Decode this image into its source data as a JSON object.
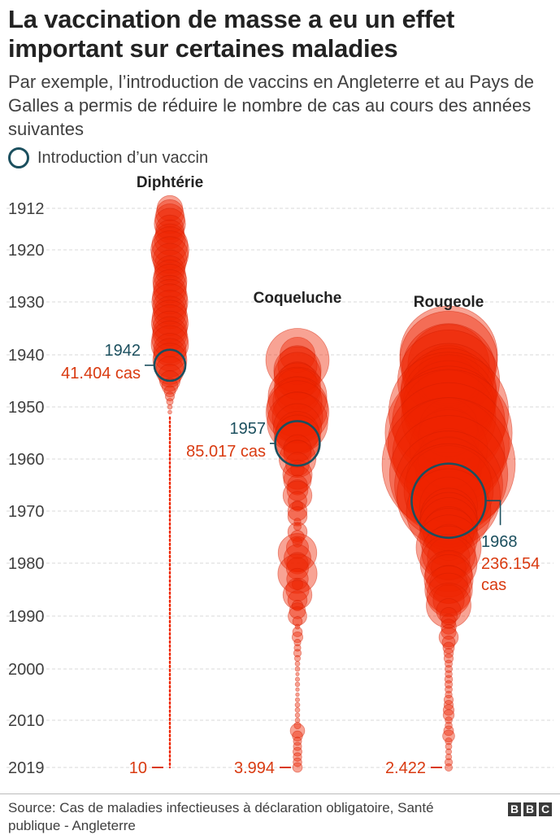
{
  "header": {
    "title": "La vaccination de masse a eu un effet important sur certaines maladies",
    "subtitle": "Par exemple, l’introduction de vaccins en Angleterre et au Pays de Galles a permis de réduire le nombre de cas au cours des années suivantes"
  },
  "legend": {
    "label": "Introduction d’un vaccin"
  },
  "footer": {
    "source": "Source: Cas de maladies infectieuses à déclaration obligatoire, Santé publique - Angleterre",
    "logo_letters": [
      "B",
      "B",
      "C"
    ]
  },
  "colors": {
    "bubble_fill": "#ee2400",
    "bubble_stroke": "#d01c00",
    "vaccine_circle": "#1b4f5e",
    "year_label": "#1b4f5e",
    "cases_label": "#d93a10",
    "grid": "#d9d9d9",
    "axis_text": "#404040"
  },
  "chart_data": {
    "type": "bubble-timeline",
    "y_axis": {
      "ticks": [
        1912,
        1920,
        1930,
        1940,
        1950,
        1960,
        1970,
        1980,
        1990,
        2000,
        2010,
        2019
      ],
      "range": [
        1912,
        2019
      ],
      "grid": true
    },
    "series": [
      {
        "name": "Diphtérie",
        "vaccine_year": 1942,
        "vaccine_year_label": "1942",
        "vaccine_cases_label": "41.404 cas",
        "final_label": "10",
        "dotted_from": 1952,
        "data": [
          [
            1912,
            28000
          ],
          [
            1913,
            33000
          ],
          [
            1914,
            38000
          ],
          [
            1915,
            42000
          ],
          [
            1916,
            34000
          ],
          [
            1917,
            36000
          ],
          [
            1918,
            42000
          ],
          [
            1919,
            55000
          ],
          [
            1920,
            62000
          ],
          [
            1921,
            58000
          ],
          [
            1922,
            49000
          ],
          [
            1923,
            42000
          ],
          [
            1924,
            38000
          ],
          [
            1925,
            44000
          ],
          [
            1926,
            50000
          ],
          [
            1927,
            48000
          ],
          [
            1928,
            45000
          ],
          [
            1929,
            52000
          ],
          [
            1930,
            56000
          ],
          [
            1931,
            50000
          ],
          [
            1932,
            46000
          ],
          [
            1933,
            54000
          ],
          [
            1934,
            58000
          ],
          [
            1935,
            52000
          ],
          [
            1936,
            50000
          ],
          [
            1937,
            56000
          ],
          [
            1938,
            60000
          ],
          [
            1939,
            46000
          ],
          [
            1940,
            46000
          ],
          [
            1941,
            50000
          ],
          [
            1942,
            41404
          ],
          [
            1943,
            34000
          ],
          [
            1944,
            23000
          ],
          [
            1945,
            18000
          ],
          [
            1946,
            11000
          ],
          [
            1947,
            5600
          ],
          [
            1948,
            3500
          ],
          [
            1949,
            1900
          ],
          [
            1950,
            960
          ],
          [
            1951,
            660
          ]
        ]
      },
      {
        "name": "Coqueluche",
        "vaccine_year": 1957,
        "vaccine_year_label": "1957",
        "vaccine_cases_label": "85.017 cas",
        "final_label": "3.994",
        "data": [
          [
            1940,
            53000
          ],
          [
            1941,
            172000
          ],
          [
            1942,
            66000
          ],
          [
            1943,
            96000
          ],
          [
            1944,
            94000
          ],
          [
            1945,
            62000
          ],
          [
            1946,
            92000
          ],
          [
            1947,
            92000
          ],
          [
            1948,
            148000
          ],
          [
            1949,
            104000
          ],
          [
            1950,
            158000
          ],
          [
            1951,
            170000
          ],
          [
            1952,
            110000
          ],
          [
            1953,
            158000
          ],
          [
            1954,
            100000
          ],
          [
            1955,
            80000
          ],
          [
            1956,
            92000
          ],
          [
            1957,
            85017
          ],
          [
            1958,
            33000
          ],
          [
            1959,
            33000
          ],
          [
            1960,
            58000
          ],
          [
            1961,
            24000
          ],
          [
            1962,
            8000
          ],
          [
            1963,
            37000
          ],
          [
            1964,
            33000
          ],
          [
            1965,
            17000
          ],
          [
            1966,
            19000
          ],
          [
            1967,
            36000
          ],
          [
            1968,
            15000
          ],
          [
            1969,
            5000
          ],
          [
            1970,
            16000
          ],
          [
            1971,
            16000
          ],
          [
            1972,
            2000
          ],
          [
            1973,
            2400
          ],
          [
            1974,
            16000
          ],
          [
            1975,
            8000
          ],
          [
            1976,
            4000
          ],
          [
            1977,
            21000
          ],
          [
            1978,
            64000
          ],
          [
            1979,
            31000
          ],
          [
            1980,
            20000
          ],
          [
            1981,
            21000
          ],
          [
            1982,
            66000
          ],
          [
            1983,
            20000
          ],
          [
            1984,
            5000
          ],
          [
            1985,
            23000
          ],
          [
            1986,
            36000
          ],
          [
            1987,
            16000
          ],
          [
            1988,
            5000
          ],
          [
            1989,
            11000
          ],
          [
            1990,
            15000
          ],
          [
            1991,
            4000
          ],
          [
            1992,
            1000
          ],
          [
            1993,
            4000
          ],
          [
            1994,
            5000
          ],
          [
            1995,
            2000
          ],
          [
            1996,
            2000
          ],
          [
            1997,
            2500
          ],
          [
            1998,
            1500
          ],
          [
            1999,
            1000
          ],
          [
            2000,
            1000
          ],
          [
            2001,
            500
          ],
          [
            2002,
            800
          ],
          [
            2003,
            900
          ],
          [
            2004,
            600
          ],
          [
            2005,
            600
          ],
          [
            2006,
            800
          ],
          [
            2007,
            1000
          ],
          [
            2008,
            1000
          ],
          [
            2009,
            900
          ],
          [
            2010,
            1000
          ],
          [
            2011,
            2000
          ],
          [
            2012,
            9000
          ],
          [
            2013,
            4500
          ],
          [
            2014,
            3000
          ],
          [
            2015,
            3000
          ],
          [
            2016,
            3500
          ],
          [
            2017,
            3200
          ],
          [
            2018,
            3300
          ],
          [
            2019,
            3994
          ]
        ]
      },
      {
        "name": "Rougeole",
        "vaccine_year": 1968,
        "vaccine_year_label": "1968",
        "vaccine_cases_label": "236.154 cas",
        "final_label": "2.422",
        "data": [
          [
            1940,
            409000
          ],
          [
            1941,
            410000
          ],
          [
            1942,
            286000
          ],
          [
            1943,
            376000
          ],
          [
            1944,
            159000
          ],
          [
            1945,
            446000
          ],
          [
            1946,
            160000
          ],
          [
            1947,
            394000
          ],
          [
            1948,
            400000
          ],
          [
            1949,
            380000
          ],
          [
            1950,
            367000
          ],
          [
            1951,
            617000
          ],
          [
            1952,
            383000
          ],
          [
            1953,
            546000
          ],
          [
            1954,
            146000
          ],
          [
            1955,
            694000
          ],
          [
            1956,
            160000
          ],
          [
            1957,
            633000
          ],
          [
            1958,
            260000
          ],
          [
            1959,
            540000
          ],
          [
            1960,
            160000
          ],
          [
            1961,
            763000
          ],
          [
            1962,
            184000
          ],
          [
            1963,
            601000
          ],
          [
            1964,
            307000
          ],
          [
            1965,
            502000
          ],
          [
            1966,
            343000
          ],
          [
            1967,
            460000
          ],
          [
            1968,
            236154
          ],
          [
            1969,
            143000
          ],
          [
            1970,
            307000
          ],
          [
            1971,
            135000
          ],
          [
            1972,
            145000
          ],
          [
            1973,
            145000
          ],
          [
            1974,
            110000
          ],
          [
            1975,
            143000
          ],
          [
            1976,
            56000
          ],
          [
            1977,
            182000
          ],
          [
            1978,
            124000
          ],
          [
            1979,
            78000
          ],
          [
            1980,
            139000
          ],
          [
            1981,
            52000
          ],
          [
            1982,
            94000
          ],
          [
            1983,
            103000
          ],
          [
            1984,
            62000
          ],
          [
            1985,
            97000
          ],
          [
            1986,
            82000
          ],
          [
            1987,
            42000
          ],
          [
            1988,
            86000
          ],
          [
            1989,
            26000
          ],
          [
            1990,
            13000
          ],
          [
            1991,
            9000
          ],
          [
            1992,
            10000
          ],
          [
            1993,
            9600
          ],
          [
            1994,
            16000
          ],
          [
            1995,
            7400
          ],
          [
            1996,
            5600
          ],
          [
            1997,
            3900
          ],
          [
            1998,
            3700
          ],
          [
            1999,
            2400
          ],
          [
            2000,
            2400
          ],
          [
            2001,
            2200
          ],
          [
            2002,
            2700
          ],
          [
            2003,
            2500
          ],
          [
            2004,
            2300
          ],
          [
            2005,
            2100
          ],
          [
            2006,
            3700
          ],
          [
            2007,
            3700
          ],
          [
            2008,
            5100
          ],
          [
            2009,
            5200
          ],
          [
            2010,
            2200
          ],
          [
            2011,
            2200
          ],
          [
            2012,
            4200
          ],
          [
            2013,
            6200
          ],
          [
            2014,
            2100
          ],
          [
            2015,
            1800
          ],
          [
            2016,
            1500
          ],
          [
            2017,
            1600
          ],
          [
            2018,
            2500
          ],
          [
            2019,
            2422
          ]
        ]
      }
    ]
  }
}
